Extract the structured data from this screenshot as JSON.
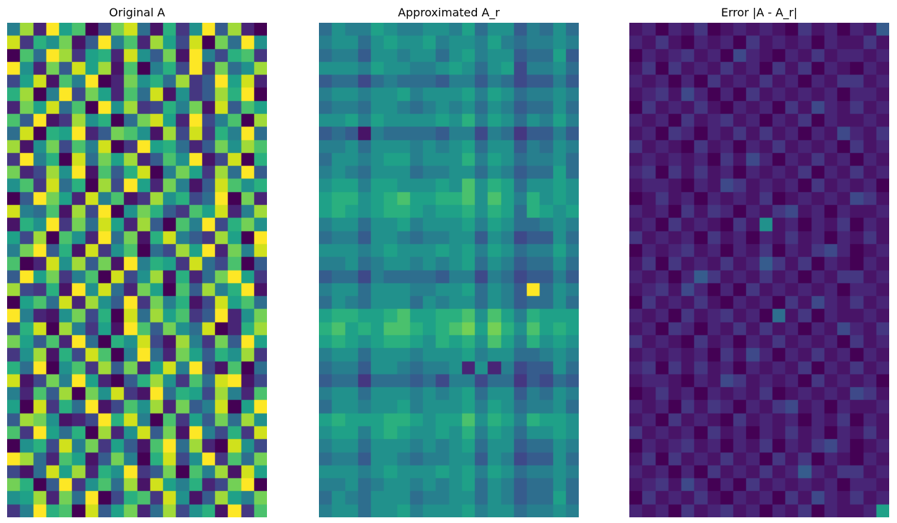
{
  "figure": {
    "background": "#ffffff",
    "kind": "matplotlib-style figure with three heatmap subplots (low-rank matrix approximation demo)"
  },
  "colors": {
    "colormap_name": "viridis",
    "viridis16": [
      "#440154",
      "#481467",
      "#482576",
      "#453781",
      "#3e4989",
      "#365c8d",
      "#2e6e8e",
      "#277f8e",
      "#21918c",
      "#1fa188",
      "#2ab07f",
      "#4ac16d",
      "#73d056",
      "#a0da39",
      "#d0e11c",
      "#fde725"
    ],
    "title_color": "#000000"
  },
  "chart_data": [
    {
      "type": "heatmap",
      "title": "Original A",
      "rows": 38,
      "cols": 20,
      "colormap": "viridis",
      "legend": "none",
      "axes_ticks": "off",
      "encoding": "each character is a hex digit 0-15 (estimated normalized cell intensity) mapped through 16-step viridis",
      "value_range_note": "uniform random matrix, full dynamic range",
      "values": [
        "7d2f9b04ce61a38f5d20",
        "e3a8c15f7b2d94e0c6f8",
        "0b6fd39a2e85c1f74ab3",
        "f82c5e9d1b07a4f3c68d",
        "49e1b7f02c8a6d35f9e2",
        "ad07f4c92b6e1835daf0",
        "2c9e6b0f8d34a7c1e5b9",
        "b5f13d8a06ce92f47b0d",
        "6e0a9f25cb81d4e3a7f6",
        "d18c4b7e03f9a625c8db",
        "3f7a0e6c9d25b8f14e0a",
        "c24d8f1b5ae07c93d6f5",
        "8b3e6a0d4f92c715eb8a",
        "05fc92e7b13d8a46f0c2",
        "e76b1d4f08ca53b9e27d",
        "1a8f3c6e92d50b7f4ac8",
        "94d0b82f6c1ae753d90f",
        "7cf5a1e38b064d9f2c7e",
        "b02e8d5c1f7a93e64b05",
        "5f9c37b0e48d1a26cf93",
        "d43a1f8e62c90b5d7af1",
        "09b6e2d85f3c7a14e9b6",
        "f7218c4a0e6d9b35f28c",
        "4ae0d7391fb5c86e02ad",
        "c95b2f60a8e41d73c5f9",
        "38d1a4eb07f62c95a8d3",
        "a6f08b3d5c29e7f41b06",
        "e14c7f9205ad83b6ef14",
        "72b5d0c8e31f6a94d72b",
        "90e3a6f14b8d2c57e09f",
        "5dc8124fae70b395c6d8",
        "b3f96a0d28e5c1f74a3e",
        "08a4e7c3951bf6d20e84",
        "fd62b915c70ae48f3b6c",
        "416e9d2a8f35c0b7d1e9",
        "ca05f38b6d1e97a24cf0",
        "89d2c6f04ab3e815d97c",
        "37fab0e59c26d48a1f3b"
      ]
    },
    {
      "type": "heatmap",
      "title": "Approximated A_r",
      "rows": 38,
      "cols": 20,
      "colormap": "viridis",
      "legend": "none",
      "axes_ticks": "off",
      "encoding": "each character is a hex digit 0-15 (estimated normalized cell intensity) mapped through 16-step viridis",
      "value_range_note": "low-rank approximation: smoother, mid-range teal/green values with row/column banding, occasional extremes",
      "values": [
        "68779877887968857686",
        "78868988978879767787",
        "67758878868978856695",
        "88879887789868947786",
        "56646766657757645575",
        "78878897888979867787",
        "67768876787868756686",
        "88979888898a79868797",
        "56517666657747635575",
        "77868887878968857687",
        "68878997888a79867786",
        "78768886778868756696",
        "89979988898b8a968898",
        "9aa89ab99aab8b97a898",
        "9a989aa9899a8a96a989",
        "78868897888979866787",
        "67758876778858745586",
        "88878988898979867797",
        "77867887878968756686",
        "56647666657747645575",
        "7886888778896875f687",
        "68768886878868756686",
        "9aa99ab99aab8b97a999",
        "ab9a9bba9abc9ca8b9a9",
        "9a989aa98a9a8b97a898",
        "78868887888978866787",
        "67758876778282745586",
        "56636665647746635465",
        "78868887878968857687",
        "68878897888979867786",
        "9a999aa9899b8a97a998",
        "89979a98898a79868898",
        "78868887878968856687",
        "67758876778858745586",
        "88878988898979867787",
        "77867887878968756686",
        "68768886778868756696",
        "78868897888978867787"
      ]
    },
    {
      "type": "heatmap",
      "title": "Error |A - A_r|",
      "rows": 38,
      "cols": 20,
      "colormap": "viridis",
      "legend": "none",
      "axes_ticks": "off",
      "encoding": "each character is a hex digit 0-15 (estimated normalized cell intensity) mapped through 16-step viridis",
      "value_range_note": "absolute error: mostly small (dark purple/blue) with scattered moderate teal cells",
      "values": [
        "12021301212103120215",
        "21310212031212021131",
        "02123120421021312212",
        "13031213120313021021",
        "21202031213120213312",
        "12314202031212120221",
        "03121310212031421312",
        "21203123120213021121",
        "12032021313120214213",
        "31210312021312120312",
        "12121203142021312021",
        "23031312021213021312",
        "12210214312120312120",
        "01312021213012121431",
        "21203132021341202112",
        "12031210318120213021",
        "31212031202131202131",
        "02123120213021342012",
        "13031213125313021021",
        "21202531213120213312",
        "12314202031212120221",
        "03121310212031421312",
        "21203123120613021121",
        "12032021313120214213",
        "31210312021312120312",
        "12121203142021312021",
        "23031312021213021312",
        "12210214312120312120",
        "01312021213012121431",
        "21203132021341202112",
        "12031210312120213021",
        "31212031202131202131",
        "02123120213021342012",
        "13031213120313021021",
        "21202031213125213312",
        "12314202031212120221",
        "03121310212031421312",
        "21203123120213021129"
      ]
    }
  ]
}
